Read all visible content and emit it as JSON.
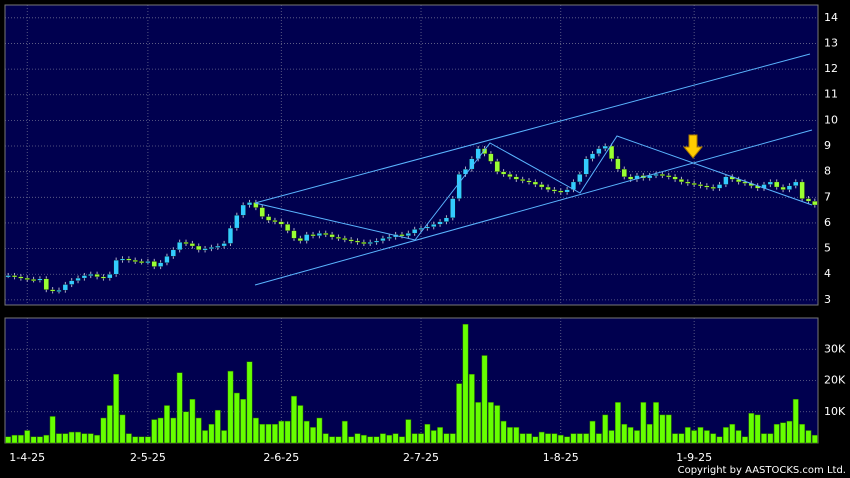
{
  "chart_data": [
    {
      "type": "candlestick",
      "open": [
        3.95,
        3.95,
        3.9,
        3.85,
        3.8,
        3.78,
        3.82,
        3.4,
        3.35,
        3.38,
        3.6,
        3.75,
        3.85,
        3.95,
        4.0,
        3.9,
        3.85,
        4.0,
        4.55,
        4.6,
        4.55,
        4.5,
        4.48,
        4.5,
        4.3,
        4.45,
        4.7,
        4.95,
        5.25,
        5.2,
        5.1,
        4.95,
        5.0,
        5.05,
        5.1,
        5.2,
        5.8,
        6.3,
        6.7,
        6.8,
        6.6,
        6.25,
        6.1,
        6.05,
        5.95,
        5.7,
        5.4,
        5.3,
        5.55,
        5.5,
        5.6,
        5.55,
        5.45,
        5.4,
        5.35,
        5.3,
        5.25,
        5.2,
        5.25,
        5.3,
        5.4,
        5.45,
        5.55,
        5.5,
        5.6,
        5.75,
        5.8,
        5.85,
        5.95,
        6.05,
        6.2,
        6.95,
        7.9,
        8.1,
        8.5,
        8.9,
        8.7,
        8.4,
        8.0,
        7.9,
        7.8,
        7.7,
        7.65,
        7.6,
        7.5,
        7.4,
        7.3,
        7.25,
        7.2,
        7.3,
        7.6,
        7.9,
        8.5,
        8.7,
        8.9,
        9.0,
        8.5,
        8.1,
        7.8,
        7.7,
        7.85,
        7.75,
        7.85,
        7.9,
        7.85,
        7.8,
        7.7,
        7.6,
        7.55,
        7.5,
        7.45,
        7.4,
        7.35,
        7.5,
        7.8,
        7.7,
        7.6,
        7.55,
        7.45,
        7.35,
        7.5,
        7.6,
        7.4,
        7.3,
        7.45,
        7.6,
        6.95,
        6.85
      ],
      "high": [
        4.05,
        4.05,
        4.0,
        3.95,
        3.9,
        3.92,
        3.92,
        3.5,
        3.48,
        3.7,
        3.85,
        3.95,
        4.05,
        4.1,
        4.1,
        4.0,
        4.1,
        4.65,
        4.7,
        4.7,
        4.65,
        4.6,
        4.6,
        4.6,
        4.55,
        4.8,
        5.05,
        5.35,
        5.35,
        5.3,
        5.2,
        5.1,
        5.15,
        5.2,
        5.3,
        5.9,
        6.4,
        6.8,
        6.9,
        6.9,
        6.7,
        6.35,
        6.2,
        6.15,
        6.05,
        5.8,
        5.5,
        5.65,
        5.65,
        5.7,
        5.7,
        5.65,
        5.55,
        5.5,
        5.45,
        5.4,
        5.35,
        5.35,
        5.4,
        5.5,
        5.55,
        5.65,
        5.65,
        5.7,
        5.85,
        5.9,
        5.95,
        6.05,
        6.15,
        6.3,
        7.05,
        8.0,
        8.2,
        8.6,
        9.0,
        9.0,
        8.8,
        8.5,
        8.1,
        8.0,
        7.9,
        7.8,
        7.75,
        7.7,
        7.6,
        7.5,
        7.4,
        7.35,
        7.4,
        7.7,
        8.0,
        8.6,
        8.8,
        9.0,
        9.1,
        9.1,
        8.6,
        8.2,
        7.9,
        7.95,
        7.95,
        7.95,
        8.0,
        8.0,
        7.95,
        7.9,
        7.8,
        7.7,
        7.65,
        7.6,
        7.55,
        7.5,
        7.6,
        7.9,
        7.9,
        7.8,
        7.7,
        7.65,
        7.55,
        7.6,
        7.7,
        7.7,
        7.5,
        7.55,
        7.7,
        7.7,
        7.05,
        6.95
      ],
      "low": [
        3.85,
        3.8,
        3.75,
        3.7,
        3.68,
        3.68,
        3.3,
        3.25,
        3.25,
        3.28,
        3.5,
        3.65,
        3.75,
        3.85,
        3.8,
        3.75,
        3.75,
        3.9,
        4.45,
        4.45,
        4.4,
        4.38,
        4.38,
        4.2,
        4.2,
        4.35,
        4.6,
        4.85,
        5.1,
        5.0,
        4.85,
        4.85,
        4.9,
        4.95,
        5.0,
        5.1,
        5.7,
        6.2,
        6.6,
        6.5,
        6.15,
        6.0,
        5.95,
        5.85,
        5.6,
        5.3,
        5.2,
        5.2,
        5.4,
        5.4,
        5.45,
        5.35,
        5.3,
        5.25,
        5.2,
        5.15,
        5.1,
        5.1,
        5.15,
        5.2,
        5.3,
        5.35,
        5.4,
        5.4,
        5.5,
        5.65,
        5.7,
        5.75,
        5.85,
        5.95,
        6.1,
        6.85,
        7.8,
        8.0,
        8.4,
        8.6,
        8.3,
        7.9,
        7.8,
        7.7,
        7.6,
        7.55,
        7.5,
        7.4,
        7.3,
        7.2,
        7.15,
        7.1,
        7.1,
        7.2,
        7.5,
        7.8,
        8.4,
        8.6,
        8.8,
        8.4,
        8.0,
        7.7,
        7.6,
        7.6,
        7.65,
        7.65,
        7.75,
        7.75,
        7.7,
        7.6,
        7.5,
        7.45,
        7.4,
        7.35,
        7.3,
        7.25,
        7.25,
        7.4,
        7.6,
        7.5,
        7.45,
        7.35,
        7.25,
        7.25,
        7.4,
        7.3,
        7.2,
        7.2,
        7.35,
        6.85,
        6.75,
        6.6
      ],
      "close": [
        3.95,
        3.9,
        3.85,
        3.8,
        3.78,
        3.82,
        3.4,
        3.35,
        3.38,
        3.6,
        3.75,
        3.85,
        3.95,
        4.0,
        3.9,
        3.85,
        4.0,
        4.55,
        4.6,
        4.55,
        4.5,
        4.48,
        4.5,
        4.3,
        4.45,
        4.7,
        4.95,
        5.25,
        5.2,
        5.1,
        4.95,
        5.0,
        5.05,
        5.1,
        5.2,
        5.8,
        6.3,
        6.7,
        6.8,
        6.6,
        6.25,
        6.1,
        6.05,
        5.95,
        5.7,
        5.4,
        5.3,
        5.55,
        5.5,
        5.6,
        5.55,
        5.45,
        5.4,
        5.35,
        5.3,
        5.25,
        5.2,
        5.25,
        5.3,
        5.4,
        5.45,
        5.55,
        5.5,
        5.6,
        5.75,
        5.8,
        5.85,
        5.95,
        6.05,
        6.2,
        6.95,
        7.9,
        8.1,
        8.5,
        8.9,
        8.7,
        8.4,
        8.0,
        7.9,
        7.8,
        7.7,
        7.65,
        7.6,
        7.5,
        7.4,
        7.3,
        7.25,
        7.2,
        7.3,
        7.6,
        7.9,
        8.5,
        8.7,
        8.9,
        9.0,
        8.5,
        8.1,
        7.8,
        7.7,
        7.85,
        7.75,
        7.85,
        7.9,
        7.85,
        7.8,
        7.7,
        7.6,
        7.55,
        7.5,
        7.45,
        7.4,
        7.35,
        7.5,
        7.8,
        7.7,
        7.6,
        7.55,
        7.45,
        7.35,
        7.5,
        7.6,
        7.4,
        7.3,
        7.45,
        7.6,
        6.95,
        6.85,
        6.7
      ],
      "up_color": "#33ccff",
      "down_color": "#99ff33",
      "ylim": [
        2.8,
        14.5
      ],
      "yticks": [
        3,
        4,
        5,
        6,
        7,
        8,
        9,
        10,
        11,
        12,
        13,
        14
      ],
      "grid": true
    },
    {
      "type": "bar",
      "color": "#66ff00",
      "values": [
        2000,
        2500,
        2500,
        4000,
        2000,
        2000,
        2500,
        8500,
        3000,
        3000,
        3500,
        3500,
        3000,
        3000,
        2500,
        8000,
        12000,
        22000,
        9000,
        3000,
        2000,
        2000,
        2000,
        7500,
        8000,
        12000,
        8000,
        22500,
        10000,
        14000,
        8000,
        4000,
        6000,
        10500,
        4000,
        23000,
        16000,
        14000,
        26000,
        8000,
        6000,
        6000,
        6000,
        7000,
        7000,
        15000,
        12000,
        7000,
        5000,
        8000,
        3000,
        2000,
        2000,
        7000,
        2000,
        3000,
        2500,
        2000,
        2000,
        3000,
        2500,
        3000,
        2000,
        7500,
        3000,
        3000,
        6000,
        4000,
        5000,
        3000,
        3000,
        19000,
        38000,
        22000,
        13000,
        28000,
        13000,
        12000,
        7000,
        5000,
        5000,
        3000,
        3000,
        2000,
        3500,
        3000,
        3000,
        2500,
        2000,
        3000,
        3000,
        3000,
        7000,
        3000,
        9000,
        4000,
        13000,
        6000,
        5000,
        4000,
        13000,
        6000,
        13000,
        9000,
        9000,
        3000,
        3000,
        5000,
        4000,
        5000,
        4000,
        3000,
        2000,
        5000,
        6000,
        4000,
        2000,
        9500,
        9000,
        3000,
        3000,
        6000,
        6500,
        7000,
        14000,
        6000,
        4000,
        2500
      ],
      "ylim": [
        0,
        40000
      ],
      "yticks": [
        {
          "value": 10000,
          "label": "10K"
        },
        {
          "value": 20000,
          "label": "20K"
        },
        {
          "value": 30000,
          "label": "30K"
        }
      ],
      "xlim": [
        0,
        128
      ],
      "xticks": [
        {
          "value": 3,
          "label": "1-4-25"
        },
        {
          "value": 22,
          "label": "2-5-25"
        },
        {
          "value": 43,
          "label": "2-6-25"
        },
        {
          "value": 65,
          "label": "2-7-25"
        },
        {
          "value": 87,
          "label": "1-8-25"
        },
        {
          "value": 108,
          "label": "1-9-25"
        }
      ],
      "copyright": "Copyright by AASTOCKS.com Ltd.",
      "grid": true
    }
  ]
}
